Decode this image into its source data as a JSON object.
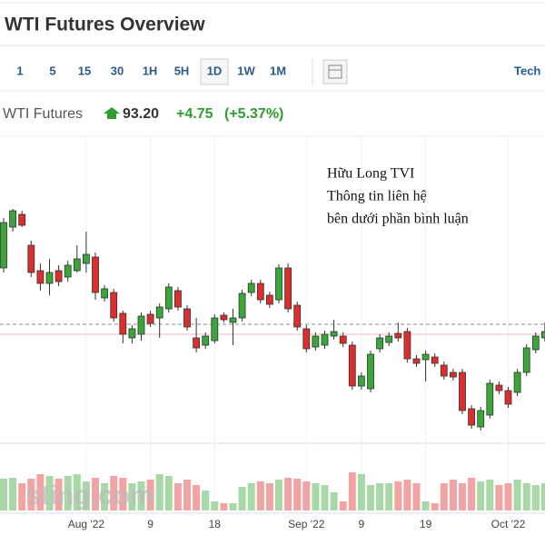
{
  "header": {
    "title": "WTI Futures Overview",
    "timeframes": [
      "1",
      "5",
      "15",
      "30",
      "1H",
      "5H",
      "1D",
      "1W",
      "1M"
    ],
    "selected_timeframe": 6,
    "tab": "Tech"
  },
  "quote": {
    "name": "WTI Futures",
    "price": "93.20",
    "change": "+4.75",
    "change_pct": "(+5.37%)"
  },
  "annotation": [
    "Hữu Long TVI",
    "Thông tin liên hệ",
    "bên dưới phần bình luận"
  ],
  "watermark": "sting.com",
  "chart_data": {
    "type": "candlestick",
    "categories": [
      null,
      null,
      null,
      null,
      null,
      null,
      null,
      null,
      null,
      "Aug '22",
      null,
      null,
      null,
      null,
      null,
      null,
      "9",
      null,
      null,
      null,
      null,
      null,
      null,
      "18",
      null,
      null,
      null,
      null,
      null,
      null,
      null,
      null,
      null,
      "Sep '22",
      null,
      null,
      null,
      null,
      null,
      "9",
      null,
      null,
      null,
      null,
      null,
      null,
      "19",
      null,
      null,
      null,
      null,
      null,
      null,
      null,
      null,
      "Oct '22",
      null,
      null,
      null,
      null
    ],
    "open": [
      94.5,
      99,
      100.4,
      97,
      94.2,
      92.8,
      94.2,
      93.5,
      94.2,
      95,
      95.7,
      91.2,
      91.8,
      89.5,
      86.8,
      87.2,
      89.4,
      89,
      90,
      92,
      90,
      86.8,
      86,
      86.5,
      89.3,
      88.5,
      89,
      91.8,
      92.8,
      91.5,
      91,
      94.5,
      90.4,
      87.8,
      85.8,
      86,
      87,
      87,
      86,
      81.5,
      81.2,
      85.6,
      86.3,
      87.3,
      87.5,
      84.5,
      84.4,
      84.7,
      83.8,
      83,
      83,
      79,
      77,
      78.3,
      81.6,
      81,
      80.8,
      83,
      85.5,
      86.8
    ],
    "high": [
      100,
      101,
      100.8,
      97.5,
      95,
      95.5,
      94.8,
      95.3,
      97,
      98.5,
      96.2,
      92.6,
      92.2,
      89.8,
      88.2,
      89.6,
      89.8,
      90.6,
      92.8,
      92.4,
      90.4,
      89,
      87.4,
      89.4,
      89.6,
      90,
      92.1,
      93.2,
      93.2,
      91.9,
      94.9,
      95,
      90.8,
      88.2,
      87.4,
      87.6,
      88.8,
      87.4,
      86.4,
      83,
      85.4,
      87.2,
      87.4,
      88.5,
      87.9,
      84.9,
      85.4,
      85.1,
      84.2,
      83.4,
      83.4,
      79.4,
      79.2,
      82.2,
      82,
      81.4,
      83.4,
      86.1,
      87.4,
      88.5
    ],
    "low": [
      94,
      98.5,
      99,
      93.5,
      92,
      91.5,
      92.5,
      93,
      94,
      94,
      91,
      90.8,
      88.6,
      86.2,
      86.2,
      86.5,
      88,
      86.8,
      89.6,
      89.8,
      87.6,
      85.2,
      85.6,
      86.2,
      88.5,
      86,
      88.6,
      91.4,
      90.6,
      90.1,
      90.6,
      89.6,
      87.6,
      85.2,
      85.4,
      85.6,
      86.6,
      85.8,
      81.1,
      81.1,
      80.8,
      85.2,
      85.9,
      86.4,
      84.1,
      83.6,
      82,
      83.6,
      82.2,
      82.1,
      78.4,
      76.8,
      76.6,
      77.9,
      80.6,
      79.1,
      80.4,
      82.6,
      85.1,
      86.4
    ],
    "close": [
      99.5,
      100.8,
      99.2,
      94,
      92.8,
      94,
      93,
      94.8,
      95.5,
      96,
      91.8,
      92.2,
      89,
      87.2,
      87.8,
      89.2,
      88.4,
      90.2,
      92.4,
      90.2,
      88,
      85.7,
      87,
      89,
      88.8,
      89,
      91.7,
      92.8,
      91,
      90.5,
      94.5,
      90,
      88,
      85.6,
      87,
      87.2,
      87.5,
      86.2,
      81.5,
      82.6,
      85,
      86.8,
      87,
      86.8,
      84.5,
      84,
      85,
      84,
      82.6,
      82.5,
      78.8,
      77.2,
      78.8,
      81.8,
      81,
      79.5,
      83,
      85.7,
      87,
      87.5
    ],
    "volume": [
      35,
      36,
      30,
      35,
      40,
      38,
      35,
      38,
      40,
      32,
      36,
      30,
      38,
      36,
      30,
      32,
      34,
      40,
      38,
      30,
      34,
      28,
      22,
      10,
      8,
      8,
      26,
      30,
      32,
      30,
      34,
      36,
      35,
      32,
      30,
      28,
      20,
      10,
      42,
      40,
      28,
      30,
      30,
      32,
      34,
      30,
      10,
      8,
      30,
      34,
      30,
      36,
      32,
      34,
      28,
      30,
      34,
      30,
      28,
      30
    ],
    "ylim": [
      75,
      109
    ],
    "volume_lim": [
      0,
      50
    ],
    "reference_lines": [
      {
        "value": 88.3,
        "style": "dashed",
        "color": "#888888"
      },
      {
        "value": 87.2,
        "style": "solid",
        "color": "#f2b8b8"
      }
    ],
    "up_color": "#3aa63a",
    "down_color": "#dd2e2e",
    "volume_up_color": "#a8d8a8",
    "volume_down_color": "#f2a3a3"
  }
}
